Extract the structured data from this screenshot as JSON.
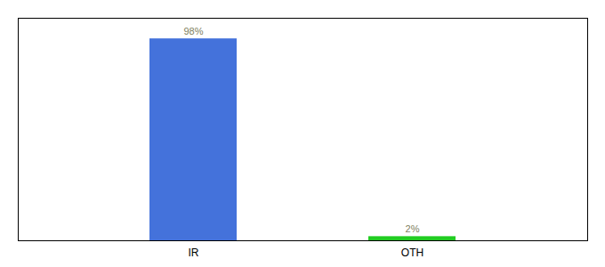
{
  "chart_data": {
    "type": "bar",
    "categories": [
      "IR",
      "OTH"
    ],
    "values": [
      98,
      2
    ],
    "value_labels": [
      "98%",
      "2%"
    ],
    "colors": [
      "#4472db",
      "#22cc22"
    ],
    "ylim": [
      0,
      108
    ],
    "data_labels": true,
    "tick_labels": "x"
  }
}
